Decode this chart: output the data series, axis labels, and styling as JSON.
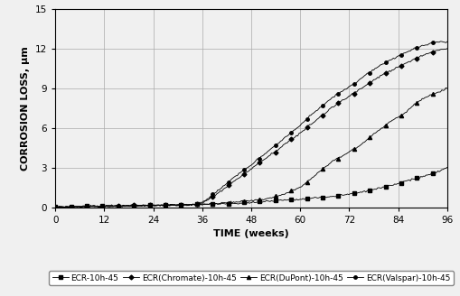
{
  "title": "",
  "xlabel": "TIME (weeks)",
  "ylabel": "CORROSION LOSS, µm",
  "xlim": [
    0,
    96
  ],
  "ylim": [
    0,
    15
  ],
  "xticks": [
    0,
    12,
    24,
    36,
    48,
    60,
    72,
    84,
    96
  ],
  "yticks": [
    0,
    3,
    6,
    9,
    12,
    15
  ],
  "background_color": "#f0f0f0",
  "grid_color": "#aaaaaa",
  "legend_fontsize": 6.5,
  "axis_fontsize": 8,
  "tick_fontsize": 7.5,
  "series": [
    {
      "label": "ECR-10h-45",
      "marker": "s",
      "color": "#000000",
      "points_x": [
        0,
        2,
        4,
        6,
        8,
        10,
        12,
        14,
        16,
        18,
        20,
        22,
        24,
        26,
        28,
        30,
        32,
        34,
        36,
        38,
        40,
        42,
        44,
        46,
        48,
        50,
        52,
        54,
        56,
        58,
        60,
        62,
        64,
        66,
        68,
        70,
        72,
        74,
        76,
        78,
        80,
        82,
        84,
        86,
        88,
        90,
        92,
        94,
        96
      ],
      "points_y": [
        0.0,
        0.02,
        0.03,
        0.04,
        0.05,
        0.06,
        0.07,
        0.08,
        0.09,
        0.1,
        0.11,
        0.12,
        0.13,
        0.14,
        0.15,
        0.16,
        0.17,
        0.18,
        0.2,
        0.22,
        0.24,
        0.26,
        0.28,
        0.3,
        0.35,
        0.4,
        0.45,
        0.5,
        0.55,
        0.58,
        0.6,
        0.65,
        0.7,
        0.75,
        0.8,
        0.9,
        1.0,
        1.1,
        1.2,
        1.35,
        1.5,
        1.65,
        1.8,
        2.0,
        2.15,
        2.3,
        2.5,
        2.7,
        3.0
      ]
    },
    {
      "label": "ECR(Chromate)-10h-45",
      "marker": "D",
      "color": "#000000",
      "points_x": [
        0,
        2,
        4,
        6,
        8,
        10,
        12,
        14,
        16,
        18,
        20,
        22,
        24,
        26,
        28,
        30,
        32,
        34,
        36,
        38,
        40,
        42,
        44,
        46,
        48,
        50,
        52,
        54,
        56,
        58,
        60,
        62,
        64,
        66,
        68,
        70,
        72,
        74,
        76,
        78,
        80,
        82,
        84,
        86,
        88,
        90,
        92,
        94,
        96
      ],
      "points_y": [
        0.0,
        0.02,
        0.04,
        0.06,
        0.07,
        0.08,
        0.09,
        0.1,
        0.11,
        0.12,
        0.13,
        0.14,
        0.15,
        0.16,
        0.17,
        0.18,
        0.19,
        0.2,
        0.3,
        0.65,
        1.1,
        1.55,
        2.0,
        2.45,
        2.9,
        3.35,
        3.8,
        4.25,
        4.7,
        5.15,
        5.6,
        6.1,
        6.6,
        7.1,
        7.6,
        8.0,
        8.4,
        8.8,
        9.2,
        9.6,
        10.0,
        10.3,
        10.6,
        10.9,
        11.2,
        11.5,
        11.7,
        11.9,
        12.0
      ]
    },
    {
      "label": "ECR(DuPont)-10h-45",
      "marker": "^",
      "color": "#000000",
      "points_x": [
        0,
        2,
        4,
        6,
        8,
        10,
        12,
        14,
        16,
        18,
        20,
        22,
        24,
        26,
        28,
        30,
        32,
        34,
        36,
        38,
        40,
        42,
        44,
        46,
        48,
        50,
        52,
        54,
        56,
        58,
        60,
        62,
        64,
        66,
        68,
        70,
        72,
        74,
        76,
        78,
        80,
        82,
        84,
        86,
        88,
        90,
        92,
        94,
        96
      ],
      "points_y": [
        0.0,
        0.02,
        0.03,
        0.04,
        0.05,
        0.06,
        0.07,
        0.08,
        0.09,
        0.1,
        0.11,
        0.12,
        0.13,
        0.14,
        0.15,
        0.16,
        0.17,
        0.18,
        0.2,
        0.25,
        0.3,
        0.35,
        0.4,
        0.45,
        0.5,
        0.55,
        0.65,
        0.8,
        1.0,
        1.25,
        1.5,
        2.0,
        2.5,
        3.0,
        3.5,
        3.8,
        4.2,
        4.5,
        5.0,
        5.5,
        6.0,
        6.5,
        6.8,
        7.2,
        7.8,
        8.2,
        8.5,
        8.7,
        9.0
      ]
    },
    {
      "label": "ECR(Valspar)-10h-45",
      "marker": "o",
      "color": "#000000",
      "points_x": [
        0,
        2,
        4,
        6,
        8,
        10,
        12,
        14,
        16,
        18,
        20,
        22,
        24,
        26,
        28,
        30,
        32,
        34,
        36,
        38,
        40,
        42,
        44,
        46,
        48,
        50,
        52,
        54,
        56,
        58,
        60,
        62,
        64,
        66,
        68,
        70,
        72,
        74,
        76,
        78,
        80,
        82,
        84,
        86,
        88,
        90,
        92,
        94,
        96
      ],
      "points_y": [
        0.0,
        0.02,
        0.04,
        0.06,
        0.07,
        0.08,
        0.09,
        0.1,
        0.11,
        0.12,
        0.13,
        0.14,
        0.15,
        0.16,
        0.17,
        0.18,
        0.19,
        0.2,
        0.35,
        0.8,
        1.3,
        1.8,
        2.3,
        2.75,
        3.2,
        3.7,
        4.2,
        4.7,
        5.2,
        5.7,
        6.2,
        6.8,
        7.3,
        7.8,
        8.3,
        8.7,
        9.1,
        9.5,
        10.0,
        10.4,
        10.8,
        11.1,
        11.4,
        11.7,
        12.0,
        12.2,
        12.4,
        12.5,
        12.5
      ]
    }
  ]
}
